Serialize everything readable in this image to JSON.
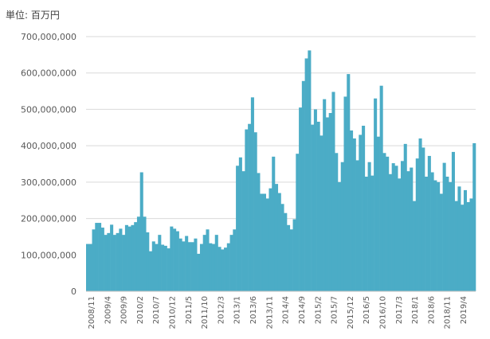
{
  "chart_data": {
    "type": "bar",
    "unit_label": "単位: 百万円",
    "ylim": [
      0,
      700000000
    ],
    "y_ticks": [
      "0",
      "100,000,000",
      "200,000,000",
      "300,000,000",
      "400,000,000",
      "500,000,000",
      "600,000,000",
      "700,000,000"
    ],
    "x_tick_labels": [
      "2008/11",
      "2009/4",
      "2009/9",
      "2010/2",
      "2010/7",
      "2010/12",
      "2011/5",
      "2011/10",
      "2012/3",
      "2013/1",
      "2013/6",
      "2013/11",
      "2014/4",
      "2014/9",
      "2015/2",
      "2015/7",
      "2015/12",
      "2016/5",
      "2016/10",
      "2017/3",
      "2018/1",
      "2018/6",
      "2018/11",
      "2019/4"
    ],
    "color": "#4BACC6",
    "grid": true,
    "values": [
      130000000,
      130000000,
      170000000,
      188000000,
      188000000,
      175000000,
      155000000,
      160000000,
      183000000,
      155000000,
      160000000,
      172000000,
      155000000,
      182000000,
      178000000,
      182000000,
      190000000,
      205000000,
      327000000,
      205000000,
      162000000,
      110000000,
      137000000,
      130000000,
      155000000,
      128000000,
      125000000,
      118000000,
      178000000,
      172000000,
      165000000,
      145000000,
      137000000,
      152000000,
      135000000,
      135000000,
      145000000,
      103000000,
      130000000,
      155000000,
      170000000,
      132000000,
      130000000,
      155000000,
      122000000,
      115000000,
      120000000,
      132000000,
      155000000,
      170000000,
      345000000,
      368000000,
      330000000,
      445000000,
      460000000,
      533000000,
      437000000,
      325000000,
      268000000,
      268000000,
      255000000,
      283000000,
      370000000,
      295000000,
      270000000,
      240000000,
      215000000,
      182000000,
      170000000,
      198000000,
      378000000,
      505000000,
      578000000,
      640000000,
      662000000,
      458000000,
      500000000,
      466000000,
      428000000,
      528000000,
      478000000,
      490000000,
      548000000,
      380000000,
      300000000,
      355000000,
      535000000,
      597000000,
      442000000,
      420000000,
      360000000,
      430000000,
      455000000,
      315000000,
      355000000,
      318000000,
      530000000,
      425000000,
      565000000,
      380000000,
      370000000,
      322000000,
      352000000,
      345000000,
      310000000,
      358000000,
      405000000,
      330000000,
      340000000,
      248000000,
      365000000,
      420000000,
      395000000,
      315000000,
      372000000,
      327000000,
      305000000,
      300000000,
      268000000,
      353000000,
      315000000,
      300000000,
      383000000,
      248000000,
      288000000,
      238000000,
      278000000,
      245000000,
      255000000,
      407000000
    ]
  }
}
